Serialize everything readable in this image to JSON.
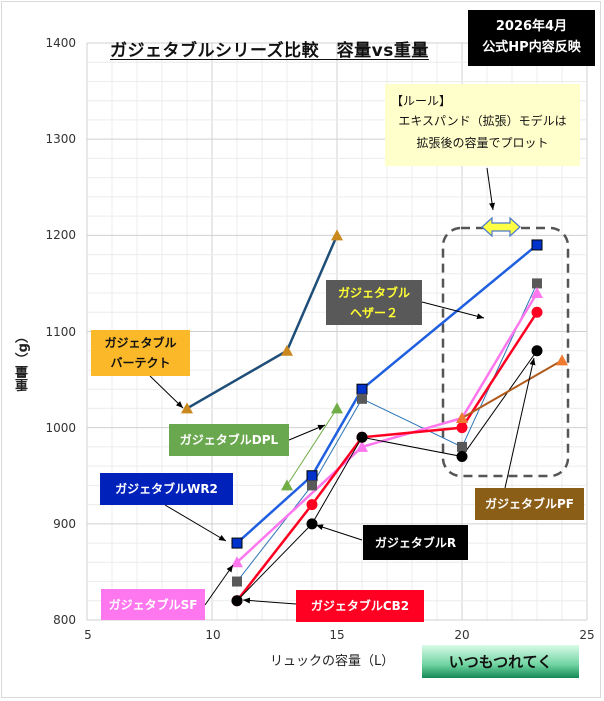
{
  "title": "ガジェタブルシリーズ比較　容量vs重量",
  "badge": {
    "line1": "2026年4月",
    "line2": "公式HP内容反映"
  },
  "rule": {
    "head": "【ルール】",
    "line1": "エキスパンド（拡張）モデルは",
    "line2": "拡張後の容量でプロット"
  },
  "brand": "いつもつれてく",
  "labels": {
    "vertekt": [
      "ガジェタブル",
      "バーテクト"
    ],
    "dpl": "ガジェタブルDPL",
    "wr2": "ガジェタブルWR2",
    "sf": "ガジェタブルSF",
    "heather2": [
      "ガジェタブル",
      "ヘザー２"
    ],
    "r": "ガジェタブルR",
    "cb2": "ガジェタブルCB2",
    "pf": "ガジェタブルPF"
  },
  "chart_data": {
    "type": "scatter",
    "title": "ガジェタブルシリーズ比較　容量vs重量",
    "xlabel": "リュックの容量（L）",
    "ylabel": "重量（g）",
    "xlim": [
      5,
      25
    ],
    "ylim": [
      800,
      1400
    ],
    "xticks": [
      5,
      10,
      15,
      20,
      25
    ],
    "yticks": [
      800,
      900,
      1000,
      1100,
      1200,
      1300,
      1400
    ],
    "grid": true,
    "series": [
      {
        "name": "ガジェタブル バーテクト",
        "marker": "triangle",
        "color": "#1f4e79",
        "marker_color": "#c9891f",
        "x": [
          9,
          13,
          15
        ],
        "y": [
          1020,
          1080,
          1200
        ]
      },
      {
        "name": "ガジェタブルDPL",
        "marker": "triangle",
        "color": "#70ad47",
        "marker_color": "#70ad47",
        "x": [
          13,
          15
        ],
        "y": [
          940,
          1020
        ]
      },
      {
        "name": "ガジェタブルWR2",
        "marker": "square",
        "color": "#1f5fe0",
        "marker_color": "#0033cc",
        "x": [
          11,
          14,
          16,
          23
        ],
        "y": [
          880,
          950,
          1040,
          1190
        ]
      },
      {
        "name": "ガジェタブル ヘザー２",
        "marker": "square",
        "color": "#2e75b6",
        "marker_color": "#595959",
        "x": [
          11,
          14,
          16,
          20,
          23
        ],
        "y": [
          840,
          940,
          1030,
          980,
          1150
        ]
      },
      {
        "name": "ガジェタブルSF",
        "marker": "triangle",
        "color": "#ff77ee",
        "marker_color": "#ff77ee",
        "x": [
          11,
          16,
          20,
          23
        ],
        "y": [
          860,
          980,
          1010,
          1140
        ]
      },
      {
        "name": "ガジェタブルCB2",
        "marker": "circle",
        "color": "#ff0022",
        "marker_color": "#ff0022",
        "x": [
          11,
          14,
          16,
          20,
          23
        ],
        "y": [
          820,
          920,
          990,
          1000,
          1120
        ]
      },
      {
        "name": "ガジェタブルR",
        "marker": "circle",
        "color": "#000000",
        "marker_color": "#000000",
        "x": [
          11,
          14,
          16,
          20,
          23
        ],
        "y": [
          820,
          900,
          990,
          970,
          1080
        ]
      },
      {
        "name": "ガジェタブルPF",
        "marker": "triangle",
        "color": "#b05a1c",
        "marker_color": "#f07a30",
        "x": [
          20,
          24
        ],
        "y": [
          1010,
          1070
        ]
      }
    ],
    "annotations": [
      "2026年4月 公式HP内容反映",
      "【ルール】エキスパンド（拡張）モデルは拡張後の容量でプロット"
    ]
  }
}
